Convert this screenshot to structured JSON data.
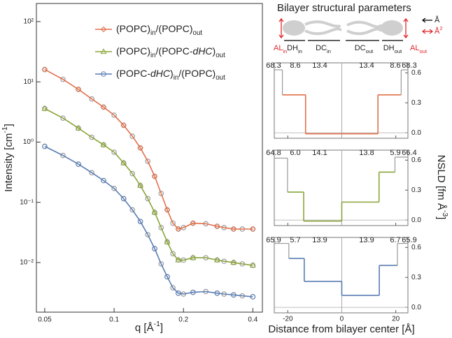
{
  "chart_data": [
    {
      "type": "line",
      "xlabel": "q [Å-1]",
      "ylabel": "Intensity [cm-1]",
      "xscale": "log",
      "yscale": "log",
      "x": [
        0.05,
        0.06,
        0.07,
        0.08,
        0.09,
        0.1,
        0.11,
        0.12,
        0.13,
        0.14,
        0.15,
        0.16,
        0.17,
        0.18,
        0.19,
        0.2,
        0.22,
        0.25,
        0.28,
        0.3,
        0.33,
        0.36,
        0.4
      ],
      "xlim": [
        0.046,
        0.44
      ],
      "xticks": [
        0.05,
        0.1,
        0.2,
        0.4
      ],
      "ylim": [
        0.0015,
        200
      ],
      "yticks": [
        {
          "value": 100,
          "label": "10²"
        },
        {
          "value": 10,
          "label": "10¹"
        },
        {
          "value": 1,
          "label": "10⁰"
        },
        {
          "value": 0.1,
          "label": "10⁻¹"
        },
        {
          "value": 0.01,
          "label": "10⁻²"
        }
      ],
      "legend": "upper center",
      "series": [
        {
          "name": "(POPC)in/(POPC)out",
          "color": "#e2704c",
          "marker": "diamond",
          "values": [
            16,
            11,
            7.5,
            5.2,
            3.8,
            2.8,
            1.9,
            1.25,
            0.8,
            0.48,
            0.27,
            0.14,
            0.075,
            0.045,
            0.036,
            0.038,
            0.045,
            0.044,
            0.04,
            0.038,
            0.036,
            0.036,
            0.036
          ]
        },
        {
          "name": "(POPC)in/(POPC-dHC)out",
          "color": "#8aa53a",
          "marker": "triangle",
          "values": [
            3.6,
            2.5,
            1.7,
            1.2,
            0.9,
            0.68,
            0.45,
            0.3,
            0.19,
            0.115,
            0.068,
            0.038,
            0.022,
            0.014,
            0.011,
            0.011,
            0.012,
            0.012,
            0.011,
            0.0105,
            0.01,
            0.0095,
            0.009
          ]
        },
        {
          "name": "(POPC-dHC)in/(POPC)out",
          "color": "#5a7db3",
          "marker": "circle",
          "values": [
            0.85,
            0.6,
            0.43,
            0.31,
            0.23,
            0.17,
            0.115,
            0.075,
            0.048,
            0.029,
            0.017,
            0.0095,
            0.0058,
            0.0038,
            0.0031,
            0.003,
            0.0032,
            0.0033,
            0.0031,
            0.003,
            0.0029,
            0.0028,
            0.0027
          ]
        }
      ]
    },
    {
      "type": "step",
      "xlabel": "Distance from bilayer center [Å]",
      "ylabel": "NSLD [fm Å-3]",
      "xlim": [
        -25,
        24.5
      ],
      "xticks": [
        -20,
        0,
        20
      ],
      "ylim": [
        -0.055,
        0.7
      ],
      "yticks": [
        {
          "value": 0,
          "label": "0.0"
        },
        0.3,
        0.6
      ],
      "panels": [
        {
          "color": "#e2704c",
          "edges": [
            -22,
            -13.4,
            0,
            13.4,
            22
          ],
          "values": [
            0.38,
            -0.01,
            -0.01,
            0.38
          ],
          "solvent": [
            0.63,
            0.63
          ],
          "annotations": [
            "68.3",
            "8.6",
            "13.4",
            "13.4",
            "8.6",
            "68.3"
          ]
        },
        {
          "color": "#8aa53a",
          "edges": [
            -20.1,
            -14.1,
            0,
            13.8,
            19.7
          ],
          "values": [
            0.28,
            -0.01,
            0.18,
            0.48
          ],
          "solvent": [
            0.62,
            0.63
          ],
          "annotations": [
            "64.8",
            "6.0",
            "14.1",
            "13.8",
            "5.9",
            "66.4"
          ]
        },
        {
          "color": "#5a7db3",
          "edges": [
            -19.6,
            -13.9,
            0,
            13.9,
            20.6
          ],
          "values": [
            0.49,
            0.26,
            0.12,
            0.42
          ],
          "solvent": [
            0.64,
            0.64
          ],
          "annotations": [
            "65.9",
            "5.7",
            "13.9",
            "13.9",
            "6.7",
            "65.9"
          ]
        }
      ]
    }
  ],
  "schematic": {
    "title": "Bilayer structural parameters",
    "labels": [
      "ALin",
      "DHin",
      "DCin",
      "DCout",
      "DHout",
      "ALout"
    ],
    "units": [
      "Å",
      "Å2"
    ]
  }
}
